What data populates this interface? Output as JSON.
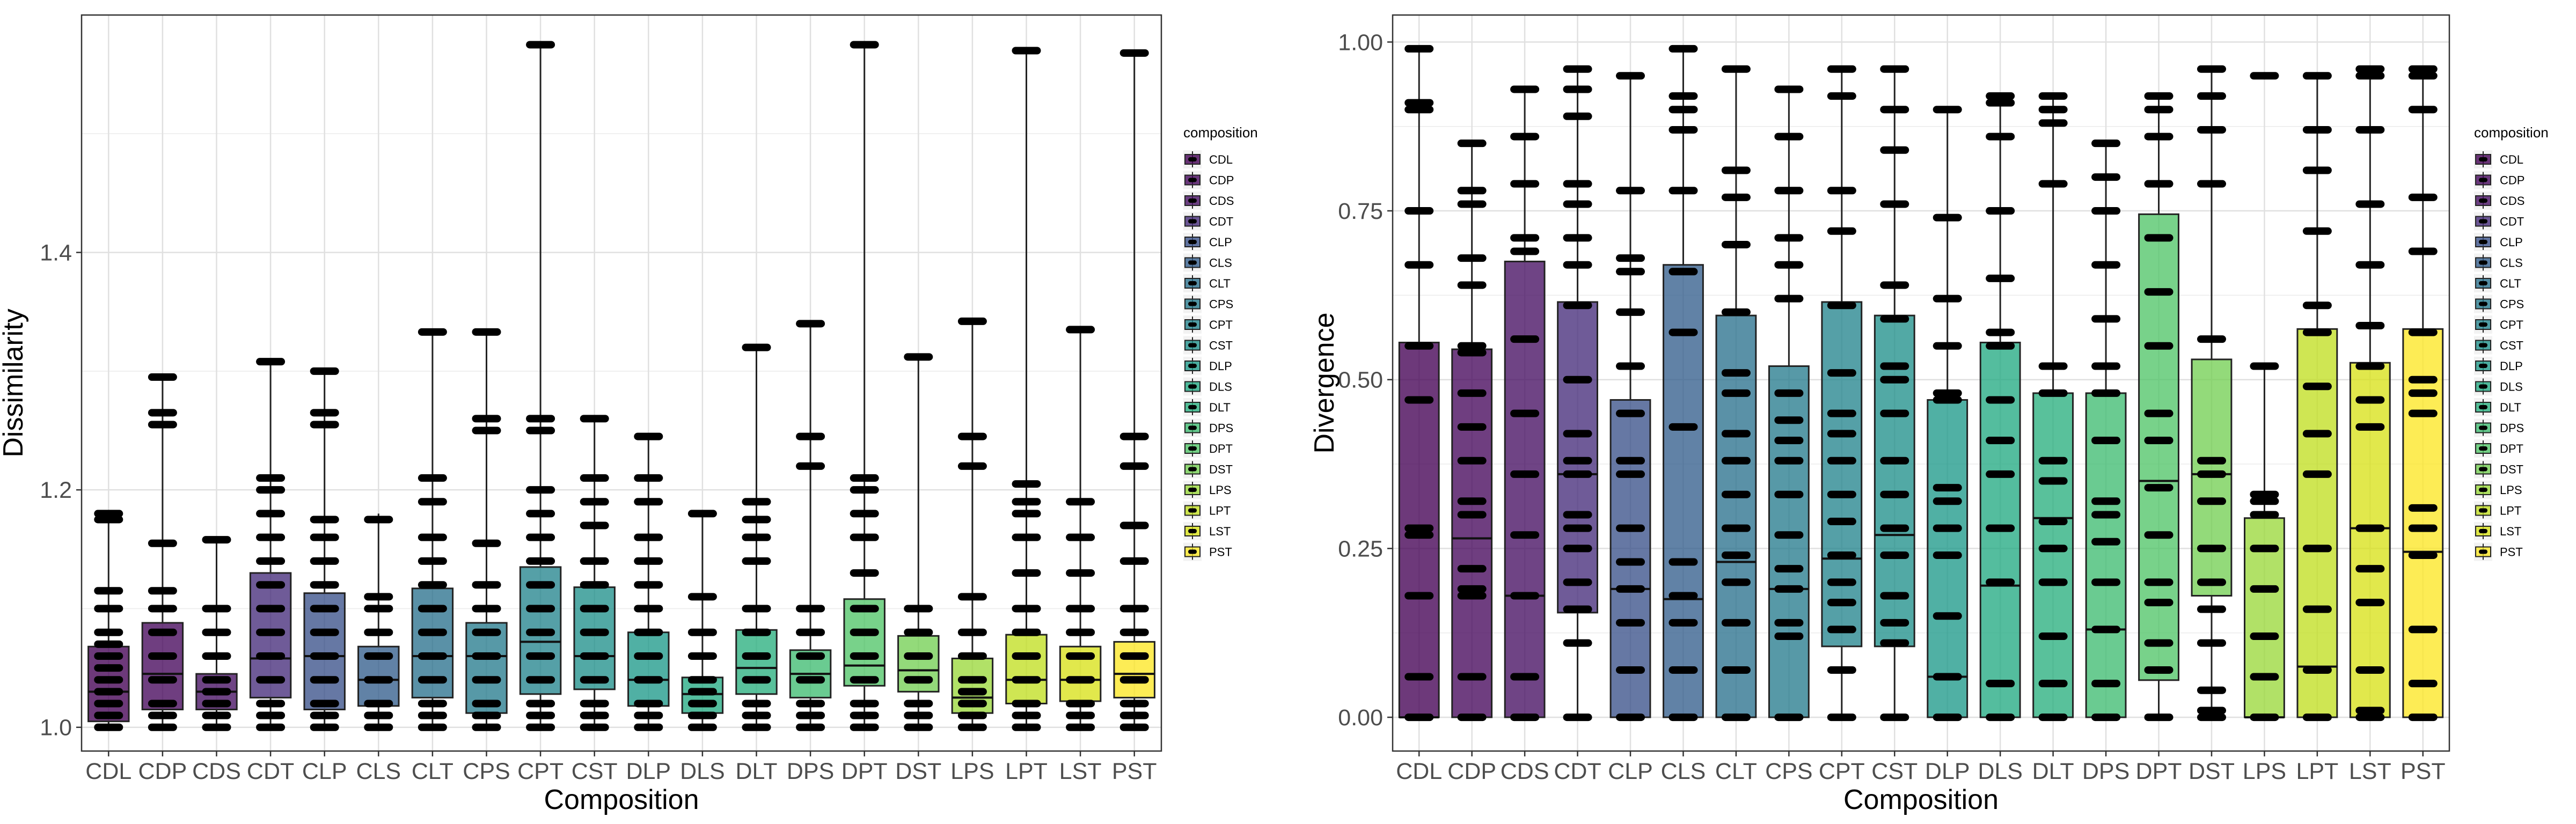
{
  "legend_title": "composition",
  "chart_data": [
    {
      "type": "box",
      "title": "",
      "xlabel": "Composition",
      "ylabel": "Dissimilarity",
      "ylim": [
        0.98,
        1.6
      ],
      "yticks": [
        1.0,
        1.2,
        1.4
      ],
      "ytick_labels": [
        "1.0",
        "1.2",
        "1.4"
      ],
      "grid": true,
      "legend_position": "right",
      "categories": [
        "CDL",
        "CDP",
        "CDS",
        "CDT",
        "CLP",
        "CLS",
        "CLT",
        "CPS",
        "CPT",
        "CST",
        "DLP",
        "DLS",
        "DLT",
        "DPS",
        "DPT",
        "DST",
        "LPS",
        "LPT",
        "LST",
        "PST"
      ],
      "colors": [
        "#440154",
        "#46085c",
        "#471063",
        "#472d7b",
        "#3b528b",
        "#355f8d",
        "#2c728e",
        "#287c8e",
        "#25858e",
        "#21918c",
        "#1f9a8a",
        "#24aa83",
        "#2ab07f",
        "#40bd72",
        "#52c569",
        "#75d054",
        "#9bd93c",
        "#c2df23",
        "#d8e219",
        "#fde725"
      ],
      "boxes": [
        {
          "q1": 1.005,
          "median": 1.03,
          "q3": 1.068,
          "lo": 1.0,
          "hi": 1.18
        },
        {
          "q1": 1.015,
          "median": 1.045,
          "q3": 1.088,
          "lo": 1.0,
          "hi": 1.295
        },
        {
          "q1": 1.015,
          "median": 1.03,
          "q3": 1.045,
          "lo": 1.0,
          "hi": 1.158
        },
        {
          "q1": 1.025,
          "median": 1.058,
          "q3": 1.13,
          "lo": 1.0,
          "hi": 1.308
        },
        {
          "q1": 1.015,
          "median": 1.06,
          "q3": 1.113,
          "lo": 1.0,
          "hi": 1.3
        },
        {
          "q1": 1.018,
          "median": 1.04,
          "q3": 1.068,
          "lo": 1.0,
          "hi": 1.18
        },
        {
          "q1": 1.025,
          "median": 1.06,
          "q3": 1.117,
          "lo": 1.0,
          "hi": 1.333
        },
        {
          "q1": 1.012,
          "median": 1.06,
          "q3": 1.088,
          "lo": 1.0,
          "hi": 1.333
        },
        {
          "q1": 1.028,
          "median": 1.072,
          "q3": 1.135,
          "lo": 1.0,
          "hi": 1.575
        },
        {
          "q1": 1.032,
          "median": 1.06,
          "q3": 1.118,
          "lo": 1.0,
          "hi": 1.26
        },
        {
          "q1": 1.018,
          "median": 1.04,
          "q3": 1.08,
          "lo": 1.0,
          "hi": 1.245
        },
        {
          "q1": 1.012,
          "median": 1.028,
          "q3": 1.042,
          "lo": 1.0,
          "hi": 1.18
        },
        {
          "q1": 1.028,
          "median": 1.05,
          "q3": 1.082,
          "lo": 1.0,
          "hi": 1.32
        },
        {
          "q1": 1.025,
          "median": 1.045,
          "q3": 1.065,
          "lo": 1.0,
          "hi": 1.34
        },
        {
          "q1": 1.035,
          "median": 1.052,
          "q3": 1.108,
          "lo": 1.0,
          "hi": 1.575
        },
        {
          "q1": 1.03,
          "median": 1.048,
          "q3": 1.077,
          "lo": 1.0,
          "hi": 1.312
        },
        {
          "q1": 1.012,
          "median": 1.025,
          "q3": 1.058,
          "lo": 1.0,
          "hi": 1.342
        },
        {
          "q1": 1.02,
          "median": 1.04,
          "q3": 1.078,
          "lo": 1.0,
          "hi": 1.57
        },
        {
          "q1": 1.022,
          "median": 1.04,
          "q3": 1.068,
          "lo": 1.0,
          "hi": 1.335
        },
        {
          "q1": 1.025,
          "median": 1.045,
          "q3": 1.072,
          "lo": 1.0,
          "hi": 1.568
        }
      ],
      "points": [
        [
          1.0,
          1.01,
          1.02,
          1.03,
          1.04,
          1.05,
          1.06,
          1.07,
          1.08,
          1.1,
          1.115,
          1.175,
          1.18
        ],
        [
          1.0,
          1.01,
          1.02,
          1.04,
          1.06,
          1.08,
          1.1,
          1.115,
          1.155,
          1.255,
          1.265,
          1.295
        ],
        [
          1.0,
          1.01,
          1.02,
          1.03,
          1.04,
          1.06,
          1.08,
          1.1,
          1.158
        ],
        [
          1.0,
          1.01,
          1.02,
          1.04,
          1.06,
          1.08,
          1.1,
          1.12,
          1.14,
          1.16,
          1.18,
          1.2,
          1.21,
          1.308
        ],
        [
          1.0,
          1.01,
          1.02,
          1.04,
          1.06,
          1.08,
          1.1,
          1.12,
          1.14,
          1.16,
          1.175,
          1.255,
          1.265,
          1.3
        ],
        [
          1.0,
          1.01,
          1.02,
          1.04,
          1.06,
          1.08,
          1.1,
          1.11,
          1.175
        ],
        [
          1.0,
          1.01,
          1.02,
          1.04,
          1.06,
          1.08,
          1.1,
          1.12,
          1.14,
          1.16,
          1.19,
          1.21,
          1.333
        ],
        [
          1.0,
          1.01,
          1.02,
          1.04,
          1.06,
          1.08,
          1.1,
          1.12,
          1.155,
          1.25,
          1.26,
          1.333
        ],
        [
          1.0,
          1.01,
          1.02,
          1.04,
          1.06,
          1.08,
          1.1,
          1.12,
          1.14,
          1.16,
          1.18,
          1.2,
          1.25,
          1.26,
          1.575
        ],
        [
          1.0,
          1.01,
          1.02,
          1.04,
          1.06,
          1.08,
          1.1,
          1.12,
          1.14,
          1.17,
          1.19,
          1.21,
          1.26
        ],
        [
          1.0,
          1.01,
          1.02,
          1.04,
          1.06,
          1.08,
          1.1,
          1.12,
          1.14,
          1.16,
          1.19,
          1.21,
          1.245
        ],
        [
          1.0,
          1.01,
          1.02,
          1.03,
          1.04,
          1.06,
          1.08,
          1.11,
          1.18
        ],
        [
          1.0,
          1.01,
          1.02,
          1.04,
          1.06,
          1.08,
          1.1,
          1.14,
          1.16,
          1.175,
          1.19,
          1.32
        ],
        [
          1.0,
          1.01,
          1.02,
          1.04,
          1.06,
          1.08,
          1.1,
          1.22,
          1.245,
          1.34
        ],
        [
          1.0,
          1.01,
          1.02,
          1.04,
          1.06,
          1.08,
          1.1,
          1.13,
          1.16,
          1.18,
          1.2,
          1.21,
          1.575
        ],
        [
          1.0,
          1.01,
          1.02,
          1.04,
          1.06,
          1.08,
          1.1,
          1.312
        ],
        [
          1.0,
          1.01,
          1.02,
          1.03,
          1.04,
          1.06,
          1.08,
          1.11,
          1.22,
          1.245,
          1.342
        ],
        [
          1.0,
          1.01,
          1.02,
          1.04,
          1.06,
          1.08,
          1.1,
          1.13,
          1.16,
          1.18,
          1.19,
          1.205,
          1.57
        ],
        [
          1.0,
          1.01,
          1.02,
          1.04,
          1.06,
          1.08,
          1.1,
          1.13,
          1.16,
          1.19,
          1.335
        ],
        [
          1.0,
          1.01,
          1.02,
          1.04,
          1.06,
          1.08,
          1.1,
          1.14,
          1.17,
          1.22,
          1.245,
          1.568
        ]
      ]
    },
    {
      "type": "box",
      "title": "",
      "xlabel": "Composition",
      "ylabel": "Divergence",
      "ylim": [
        -0.05,
        1.04
      ],
      "yticks": [
        0.0,
        0.25,
        0.5,
        0.75,
        1.0
      ],
      "ytick_labels": [
        "0.00",
        "0.25",
        "0.50",
        "0.75",
        "1.00"
      ],
      "grid": true,
      "legend_position": "right",
      "categories": [
        "CDL",
        "CDP",
        "CDS",
        "CDT",
        "CLP",
        "CLS",
        "CLT",
        "CPS",
        "CPT",
        "CST",
        "DLP",
        "DLS",
        "DLT",
        "DPS",
        "DPT",
        "DST",
        "LPS",
        "LPT",
        "LST",
        "PST"
      ],
      "colors": [
        "#440154",
        "#46085c",
        "#471063",
        "#472d7b",
        "#3b528b",
        "#355f8d",
        "#2c728e",
        "#287c8e",
        "#25858e",
        "#21918c",
        "#1f9a8a",
        "#24aa83",
        "#2ab07f",
        "#40bd72",
        "#52c569",
        "#75d054",
        "#9bd93c",
        "#c2df23",
        "#d8e219",
        "#fde725"
      ],
      "boxes": [
        {
          "q1": 0.0,
          "median": 0.0,
          "q3": 0.555,
          "lo": 0.0,
          "hi": 0.99
        },
        {
          "q1": 0.0,
          "median": 0.265,
          "q3": 0.545,
          "lo": 0.0,
          "hi": 0.85
        },
        {
          "q1": 0.0,
          "median": 0.18,
          "q3": 0.675,
          "lo": 0.0,
          "hi": 0.93
        },
        {
          "q1": 0.155,
          "median": 0.36,
          "q3": 0.615,
          "lo": 0.0,
          "hi": 0.965
        },
        {
          "q1": 0.0,
          "median": 0.19,
          "q3": 0.47,
          "lo": 0.0,
          "hi": 0.955
        },
        {
          "q1": 0.0,
          "median": 0.175,
          "q3": 0.67,
          "lo": 0.0,
          "hi": 0.99
        },
        {
          "q1": 0.0,
          "median": 0.23,
          "q3": 0.595,
          "lo": 0.0,
          "hi": 0.965
        },
        {
          "q1": 0.0,
          "median": 0.19,
          "q3": 0.52,
          "lo": 0.0,
          "hi": 0.93
        },
        {
          "q1": 0.105,
          "median": 0.235,
          "q3": 0.615,
          "lo": 0.0,
          "hi": 0.965
        },
        {
          "q1": 0.105,
          "median": 0.27,
          "q3": 0.595,
          "lo": 0.0,
          "hi": 0.965
        },
        {
          "q1": 0.0,
          "median": 0.06,
          "q3": 0.47,
          "lo": 0.0,
          "hi": 0.905
        },
        {
          "q1": 0.0,
          "median": 0.195,
          "q3": 0.555,
          "lo": 0.0,
          "hi": 0.925
        },
        {
          "q1": 0.0,
          "median": 0.295,
          "q3": 0.48,
          "lo": 0.0,
          "hi": 0.925
        },
        {
          "q1": 0.0,
          "median": 0.13,
          "q3": 0.48,
          "lo": 0.0,
          "hi": 0.85
        },
        {
          "q1": 0.055,
          "median": 0.35,
          "q3": 0.745,
          "lo": 0.0,
          "hi": 0.925
        },
        {
          "q1": 0.18,
          "median": 0.36,
          "q3": 0.53,
          "lo": 0.0,
          "hi": 0.96
        },
        {
          "q1": 0.0,
          "median": 0.0,
          "q3": 0.295,
          "lo": 0.0,
          "hi": 0.52
        },
        {
          "q1": 0.0,
          "median": 0.075,
          "q3": 0.575,
          "lo": 0.0,
          "hi": 0.955
        },
        {
          "q1": 0.0,
          "median": 0.28,
          "q3": 0.525,
          "lo": 0.0,
          "hi": 0.96
        },
        {
          "q1": 0.0,
          "median": 0.245,
          "q3": 0.575,
          "lo": 0.0,
          "hi": 0.96
        }
      ],
      "points": [
        [
          0.0,
          0.06,
          0.18,
          0.27,
          0.28,
          0.47,
          0.55,
          0.67,
          0.75,
          0.9,
          0.91,
          0.99
        ],
        [
          0.0,
          0.06,
          0.18,
          0.19,
          0.22,
          0.3,
          0.32,
          0.38,
          0.43,
          0.48,
          0.54,
          0.55,
          0.64,
          0.68,
          0.76,
          0.78,
          0.85
        ],
        [
          0.0,
          0.06,
          0.18,
          0.27,
          0.36,
          0.45,
          0.56,
          0.69,
          0.71,
          0.79,
          0.86,
          0.93
        ],
        [
          0.0,
          0.11,
          0.16,
          0.2,
          0.25,
          0.28,
          0.3,
          0.36,
          0.38,
          0.42,
          0.5,
          0.61,
          0.67,
          0.71,
          0.76,
          0.79,
          0.89,
          0.93,
          0.96
        ],
        [
          0.0,
          0.07,
          0.14,
          0.19,
          0.23,
          0.28,
          0.36,
          0.38,
          0.45,
          0.52,
          0.6,
          0.66,
          0.68,
          0.78,
          0.95
        ],
        [
          0.0,
          0.07,
          0.14,
          0.18,
          0.23,
          0.43,
          0.57,
          0.66,
          0.78,
          0.87,
          0.9,
          0.92,
          0.99
        ],
        [
          0.0,
          0.07,
          0.14,
          0.2,
          0.24,
          0.28,
          0.33,
          0.38,
          0.42,
          0.48,
          0.51,
          0.6,
          0.7,
          0.77,
          0.81,
          0.96
        ],
        [
          0.0,
          0.12,
          0.14,
          0.19,
          0.22,
          0.27,
          0.33,
          0.38,
          0.41,
          0.44,
          0.48,
          0.62,
          0.67,
          0.71,
          0.78,
          0.86,
          0.93
        ],
        [
          0.0,
          0.07,
          0.13,
          0.17,
          0.2,
          0.24,
          0.29,
          0.33,
          0.38,
          0.42,
          0.45,
          0.51,
          0.61,
          0.72,
          0.78,
          0.92,
          0.96
        ],
        [
          0.0,
          0.11,
          0.14,
          0.18,
          0.24,
          0.28,
          0.33,
          0.38,
          0.45,
          0.5,
          0.52,
          0.59,
          0.64,
          0.76,
          0.84,
          0.9,
          0.96
        ],
        [
          0.0,
          0.06,
          0.15,
          0.24,
          0.28,
          0.32,
          0.34,
          0.47,
          0.48,
          0.55,
          0.62,
          0.74,
          0.9
        ],
        [
          0.0,
          0.05,
          0.2,
          0.28,
          0.36,
          0.41,
          0.47,
          0.55,
          0.57,
          0.65,
          0.75,
          0.86,
          0.91,
          0.92
        ],
        [
          0.0,
          0.05,
          0.12,
          0.2,
          0.25,
          0.29,
          0.35,
          0.38,
          0.48,
          0.52,
          0.79,
          0.88,
          0.9,
          0.92
        ],
        [
          0.0,
          0.05,
          0.13,
          0.2,
          0.26,
          0.3,
          0.32,
          0.41,
          0.48,
          0.52,
          0.59,
          0.67,
          0.75,
          0.8,
          0.85
        ],
        [
          0.0,
          0.07,
          0.11,
          0.17,
          0.2,
          0.27,
          0.34,
          0.41,
          0.45,
          0.55,
          0.63,
          0.71,
          0.79,
          0.86,
          0.9,
          0.92
        ],
        [
          0.0,
          0.01,
          0.04,
          0.11,
          0.16,
          0.2,
          0.25,
          0.32,
          0.36,
          0.38,
          0.56,
          0.79,
          0.87,
          0.92,
          0.96
        ],
        [
          0.0,
          0.06,
          0.12,
          0.19,
          0.25,
          0.3,
          0.32,
          0.33,
          0.52,
          0.95
        ],
        [
          0.0,
          0.07,
          0.16,
          0.25,
          0.36,
          0.42,
          0.49,
          0.57,
          0.61,
          0.72,
          0.81,
          0.87,
          0.95
        ],
        [
          0.0,
          0.01,
          0.07,
          0.17,
          0.22,
          0.28,
          0.43,
          0.47,
          0.52,
          0.58,
          0.67,
          0.76,
          0.87,
          0.95,
          0.96
        ],
        [
          0.0,
          0.05,
          0.13,
          0.24,
          0.28,
          0.31,
          0.45,
          0.48,
          0.5,
          0.57,
          0.69,
          0.77,
          0.9,
          0.95,
          0.96
        ]
      ]
    }
  ]
}
